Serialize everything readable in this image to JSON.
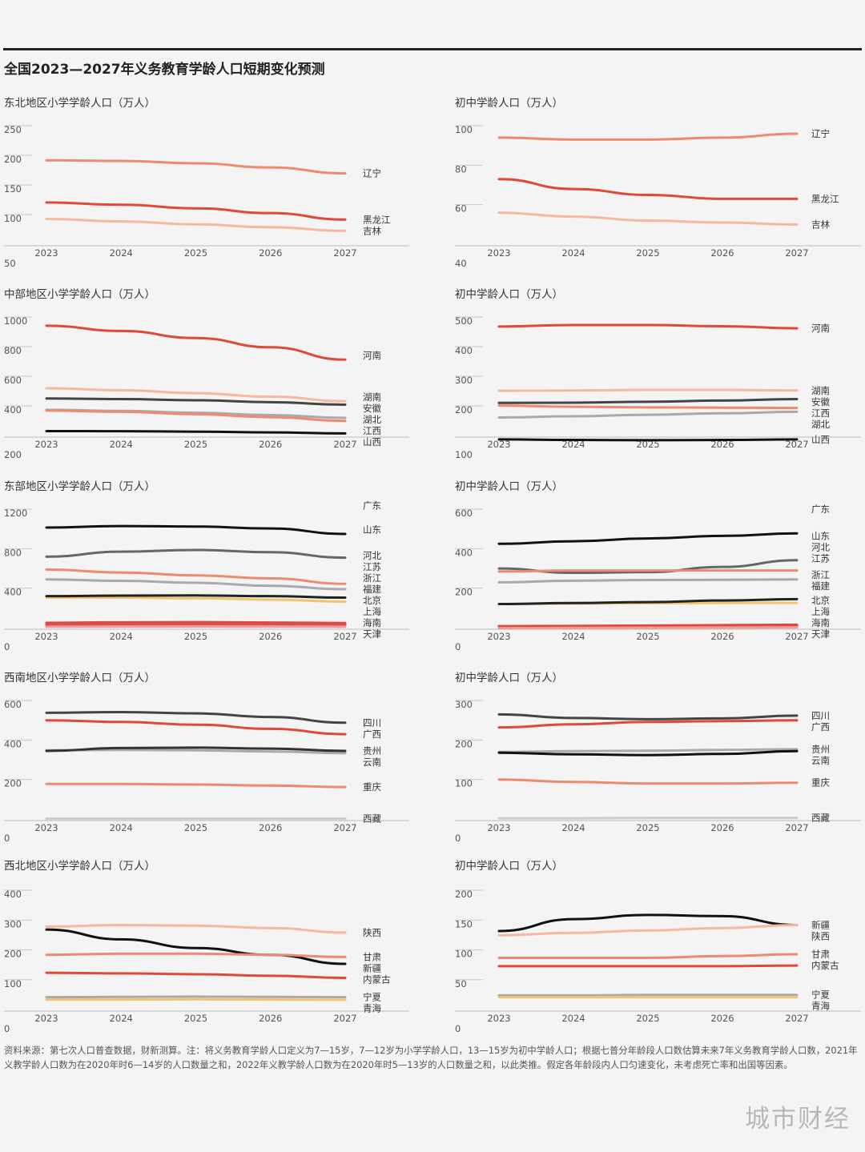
{
  "title": "全国2023—2027年义务教育学龄人口短期变化预测",
  "source": "资料来源：第七次人口普查数据，财新测算。注：将义务教育学龄人口定义为7—15岁，7—12岁为小学学龄人口，13—15岁为初中学龄人口；根据七普分年龄段人口数估算未来7年义务教育学龄人口数，2021年义教学龄人口数为在2020年时6—14岁的人口数量之和，2022年义教学龄人口数为在2020年时5—13岁的人口数量之和，以此类推。假定各年龄段内人口匀速变化，未考虑死亡率和出国等因素。",
  "brand": "城市财经",
  "chart_data": [
    {
      "type": "line",
      "title": "东北地区小学学龄人口（万人）",
      "x": [
        "2023",
        "2024",
        "2025",
        "2026",
        "2027"
      ],
      "ylim": [
        50,
        250
      ],
      "yticks": [
        "50",
        "100",
        "150",
        "200",
        "250"
      ],
      "series": [
        {
          "name": "辽宁",
          "color": "#ef8a6f",
          "values": [
            205,
            204,
            200,
            193,
            183
          ]
        },
        {
          "name": "黑龙江",
          "color": "#e0483a",
          "values": [
            134,
            130,
            124,
            116,
            105
          ]
        },
        {
          "name": "吉林",
          "color": "#f5b8a0",
          "values": [
            106,
            102,
            97,
            92,
            86
          ]
        }
      ]
    },
    {
      "type": "line",
      "title": "初中学龄人口（万人）",
      "x": [
        "2023",
        "2024",
        "2025",
        "2026",
        "2027"
      ],
      "ylim": [
        40,
        100
      ],
      "yticks": [
        "40",
        "60",
        "80",
        "100"
      ],
      "series": [
        {
          "name": "辽宁",
          "color": "#ef8a6f",
          "values": [
            98,
            97,
            97,
            98,
            100
          ]
        },
        {
          "name": "黑龙江",
          "color": "#e0483a",
          "values": [
            77,
            72,
            69,
            67,
            67
          ]
        },
        {
          "name": "吉林",
          "color": "#f5b8a0",
          "values": [
            60,
            58,
            56,
            55,
            54
          ]
        }
      ]
    },
    {
      "type": "line",
      "title": "中部地区小学学龄人口（万人）",
      "x": [
        "2023",
        "2024",
        "2025",
        "2026",
        "2027"
      ],
      "ylim": [
        200,
        1000
      ],
      "yticks": [
        "200",
        "400",
        "600",
        "800",
        "1000"
      ],
      "series": [
        {
          "name": "河南",
          "color": "#e0483a",
          "values": [
            995,
            960,
            912,
            850,
            766
          ]
        },
        {
          "name": "湖南",
          "color": "#f5b8a0",
          "values": [
            573,
            560,
            540,
            516,
            486
          ]
        },
        {
          "name": "安徽",
          "color": "#444444",
          "values": [
            504,
            500,
            492,
            479,
            462
          ]
        },
        {
          "name": "湖北",
          "color": "#aaaaaa",
          "values": [
            428,
            420,
            408,
            392,
            373
          ]
        },
        {
          "name": "江西",
          "color": "#ef8a6f",
          "values": [
            422,
            414,
            398,
            378,
            353
          ]
        },
        {
          "name": "山西",
          "color": "#111111",
          "values": [
            284,
            283,
            280,
            275,
            268
          ]
        }
      ]
    },
    {
      "type": "line",
      "title": "初中学龄人口（万人）",
      "x": [
        "2023",
        "2024",
        "2025",
        "2026",
        "2027"
      ],
      "ylim": [
        100,
        500
      ],
      "yticks": [
        "100",
        "200",
        "300",
        "400",
        "500"
      ],
      "series": [
        {
          "name": "河南",
          "color": "#e0483a",
          "values": [
            495,
            500,
            500,
            496,
            489
          ]
        },
        {
          "name": "湖南",
          "color": "#f5b8a0",
          "values": [
            278,
            279,
            281,
            281,
            279
          ]
        },
        {
          "name": "安徽",
          "color": "#444444",
          "values": [
            237,
            238,
            241,
            245,
            250
          ]
        },
        {
          "name": "江西",
          "color": "#ef8a6f",
          "values": [
            228,
            224,
            222,
            221,
            220
          ]
        },
        {
          "name": "湖北",
          "color": "#aaaaaa",
          "values": [
            188,
            192,
            197,
            202,
            207
          ]
        },
        {
          "name": "山西",
          "color": "#111111",
          "values": [
            114,
            112,
            111,
            112,
            114
          ]
        }
      ]
    },
    {
      "type": "line",
      "title": "东部地区小学学龄人口（万人）",
      "x": [
        "2023",
        "2024",
        "2025",
        "2026",
        "2027"
      ],
      "ylim": [
        0,
        1200
      ],
      "yticks": [
        "0",
        "400",
        "800",
        "1200"
      ],
      "series": [
        {
          "name": "广东",
          "color": "#111111",
          "values": [
            1095,
            1110,
            1105,
            1085,
            1030
          ]
        },
        {
          "name": "山东",
          "color": "#666666",
          "values": [
            800,
            850,
            868,
            845,
            790
          ]
        },
        {
          "name": "河北",
          "color": "#ef8a6f",
          "values": [
            670,
            640,
            610,
            580,
            525
          ]
        },
        {
          "name": "江苏",
          "color": "#aaaaaa",
          "values": [
            570,
            555,
            535,
            505,
            470
          ]
        },
        {
          "name": "福建",
          "color": "#f2c470",
          "values": [
            385,
            385,
            378,
            365,
            345
          ]
        },
        {
          "name": "浙江",
          "color": "#222222",
          "values": [
            400,
            405,
            407,
            400,
            385
          ]
        },
        {
          "name": "海南",
          "color": "#c777b4",
          "values": [
            100,
            103,
            104,
            102,
            98
          ]
        },
        {
          "name": "北京",
          "color": "#e0483a",
          "values": [
            130,
            135,
            137,
            133,
            128
          ]
        },
        {
          "name": "天津",
          "color": "#f09a9a",
          "values": [
            90,
            92,
            93,
            92,
            90
          ]
        },
        {
          "name": "上海",
          "color": "#d65050",
          "values": [
            115,
            118,
            120,
            118,
            115
          ]
        }
      ]
    },
    {
      "type": "line",
      "title": "初中学龄人口（万人）",
      "x": [
        "2023",
        "2024",
        "2025",
        "2026",
        "2027"
      ],
      "ylim": [
        0,
        600
      ],
      "yticks": [
        "0",
        "200",
        "400",
        "600"
      ],
      "series": [
        {
          "name": "广东",
          "color": "#111111",
          "values": [
            465,
            478,
            492,
            505,
            518
          ]
        },
        {
          "name": "山东",
          "color": "#666666",
          "values": [
            340,
            318,
            322,
            348,
            382
          ]
        },
        {
          "name": "河北",
          "color": "#ef8a6f",
          "values": [
            325,
            330,
            330,
            330,
            330
          ]
        },
        {
          "name": "江苏",
          "color": "#aaaaaa",
          "values": [
            270,
            278,
            282,
            283,
            285
          ]
        },
        {
          "name": "福建",
          "color": "#f2c470",
          "values": [
            160,
            162,
            164,
            165,
            166
          ]
        },
        {
          "name": "浙江",
          "color": "#222222",
          "values": [
            160,
            165,
            170,
            178,
            185
          ]
        },
        {
          "name": "海南",
          "color": "#c777b4",
          "values": [
            40,
            41,
            42,
            43,
            44
          ]
        },
        {
          "name": "上海",
          "color": "#d65050",
          "values": [
            45,
            46,
            47,
            48,
            50
          ]
        },
        {
          "name": "北京",
          "color": "#e0483a",
          "values": [
            48,
            49,
            51,
            53,
            55
          ]
        },
        {
          "name": "天津",
          "color": "#f09a9a",
          "values": [
            38,
            39,
            40,
            41,
            42
          ]
        }
      ]
    },
    {
      "type": "line",
      "title": "西南地区小学学龄人口（万人）",
      "x": [
        "2023",
        "2024",
        "2025",
        "2026",
        "2027"
      ],
      "ylim": [
        0,
        600
      ],
      "yticks": [
        "0",
        "200",
        "400",
        "600"
      ],
      "series": [
        {
          "name": "四川",
          "color": "#444444",
          "values": [
            578,
            582,
            575,
            557,
            528
          ]
        },
        {
          "name": "广西",
          "color": "#e0483a",
          "values": [
            540,
            532,
            518,
            497,
            470
          ]
        },
        {
          "name": "云南",
          "color": "#aaaaaa",
          "values": [
            388,
            390,
            388,
            382,
            374
          ]
        },
        {
          "name": "贵州",
          "color": "#333333",
          "values": [
            385,
            400,
            402,
            397,
            385
          ]
        },
        {
          "name": "重庆",
          "color": "#ef8a6f",
          "values": [
            218,
            218,
            215,
            210,
            202
          ]
        },
        {
          "name": "西藏",
          "color": "#cccccc",
          "values": [
            42,
            42,
            42,
            42,
            42
          ]
        }
      ]
    },
    {
      "type": "line",
      "title": "初中学龄人口（万人）",
      "x": [
        "2023",
        "2024",
        "2025",
        "2026",
        "2027"
      ],
      "ylim": [
        0,
        300
      ],
      "yticks": [
        "0",
        "100",
        "200",
        "300"
      ],
      "series": [
        {
          "name": "四川",
          "color": "#444444",
          "values": [
            285,
            276,
            273,
            275,
            282
          ]
        },
        {
          "name": "广西",
          "color": "#e0483a",
          "values": [
            252,
            260,
            266,
            268,
            270
          ]
        },
        {
          "name": "贵州",
          "color": "#aaaaaa",
          "values": [
            190,
            192,
            193,
            195,
            197
          ]
        },
        {
          "name": "云南",
          "color": "#111111",
          "values": [
            188,
            184,
            182,
            185,
            192
          ]
        },
        {
          "name": "重庆",
          "color": "#ef8a6f",
          "values": [
            120,
            114,
            110,
            110,
            112
          ]
        },
        {
          "name": "西藏",
          "color": "#cccccc",
          "values": [
            22,
            22,
            23,
            23,
            23
          ]
        }
      ]
    },
    {
      "type": "line",
      "title": "西北地区小学学龄人口（万人）",
      "x": [
        "2023",
        "2024",
        "2025",
        "2026",
        "2027"
      ],
      "ylim": [
        0,
        400
      ],
      "yticks": [
        "0",
        "100",
        "200",
        "300",
        "400"
      ],
      "series": [
        {
          "name": "陕西",
          "color": "#f5b8a0",
          "values": [
            305,
            310,
            308,
            300,
            285
          ]
        },
        {
          "name": "新疆",
          "color": "#111111",
          "values": [
            295,
            262,
            233,
            210,
            180
          ]
        },
        {
          "name": "甘肃",
          "color": "#ef8a6f",
          "values": [
            210,
            214,
            214,
            210,
            203
          ]
        },
        {
          "name": "内蒙古",
          "color": "#e0483a",
          "values": [
            150,
            148,
            145,
            140,
            133
          ]
        },
        {
          "name": "宁夏",
          "color": "#aaaaaa",
          "values": [
            68,
            69,
            70,
            69,
            68
          ]
        },
        {
          "name": "青海",
          "color": "#f2c470",
          "values": [
            60,
            60,
            61,
            60,
            59
          ]
        }
      ]
    },
    {
      "type": "line",
      "title": "初中学龄人口（万人）",
      "x": [
        "2023",
        "2024",
        "2025",
        "2026",
        "2027"
      ],
      "ylim": [
        0,
        200
      ],
      "yticks": [
        "0",
        "50",
        "100",
        "150",
        "200"
      ],
      "series": [
        {
          "name": "新疆",
          "color": "#111111",
          "values": [
            145,
            165,
            172,
            170,
            155
          ]
        },
        {
          "name": "陕西",
          "color": "#f5b8a0",
          "values": [
            138,
            142,
            146,
            150,
            155
          ]
        },
        {
          "name": "甘肃",
          "color": "#ef8a6f",
          "values": [
            100,
            100,
            100,
            103,
            106
          ]
        },
        {
          "name": "内蒙古",
          "color": "#e0483a",
          "values": [
            86,
            86,
            86,
            86,
            87
          ]
        },
        {
          "name": "宁夏",
          "color": "#aaaaaa",
          "values": [
            37,
            37,
            38,
            38,
            38
          ]
        },
        {
          "name": "青海",
          "color": "#f2c470",
          "values": [
            34,
            34,
            34,
            34,
            34
          ]
        }
      ]
    }
  ]
}
